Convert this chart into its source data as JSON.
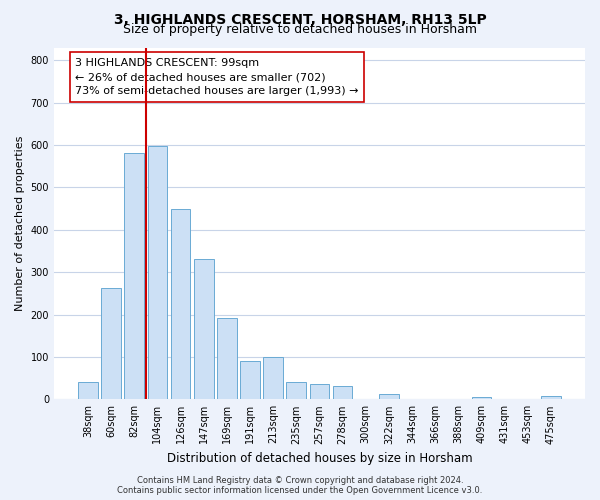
{
  "title": "3, HIGHLANDS CRESCENT, HORSHAM, RH13 5LP",
  "subtitle": "Size of property relative to detached houses in Horsham",
  "xlabel": "Distribution of detached houses by size in Horsham",
  "ylabel": "Number of detached properties",
  "bar_labels": [
    "38sqm",
    "60sqm",
    "82sqm",
    "104sqm",
    "126sqm",
    "147sqm",
    "169sqm",
    "191sqm",
    "213sqm",
    "235sqm",
    "257sqm",
    "278sqm",
    "300sqm",
    "322sqm",
    "344sqm",
    "366sqm",
    "388sqm",
    "409sqm",
    "431sqm",
    "453sqm",
    "475sqm"
  ],
  "bar_values": [
    40,
    263,
    580,
    597,
    450,
    332,
    193,
    90,
    100,
    40,
    35,
    32,
    0,
    12,
    0,
    0,
    0,
    5,
    0,
    0,
    7
  ],
  "bar_color": "#cce0f5",
  "bar_edge_color": "#6aaad4",
  "ylim": [
    0,
    830
  ],
  "yticks": [
    0,
    100,
    200,
    300,
    400,
    500,
    600,
    700,
    800
  ],
  "vline_color": "#cc0000",
  "annotation_line1": "3 HIGHLANDS CRESCENT: 99sqm",
  "annotation_line2": "← 26% of detached houses are smaller (702)",
  "annotation_line3": "73% of semi-detached houses are larger (1,993) →",
  "annotation_box_color": "#ffffff",
  "annotation_box_edgecolor": "#cc0000",
  "footer_line1": "Contains HM Land Registry data © Crown copyright and database right 2024.",
  "footer_line2": "Contains public sector information licensed under the Open Government Licence v3.0.",
  "background_color": "#edf2fb",
  "plot_bg_color": "#ffffff",
  "grid_color": "#c8d4e8",
  "title_fontsize": 10,
  "subtitle_fontsize": 9,
  "tick_fontsize": 7,
  "ylabel_fontsize": 8,
  "xlabel_fontsize": 8.5,
  "footer_fontsize": 6,
  "annotation_fontsize": 8
}
